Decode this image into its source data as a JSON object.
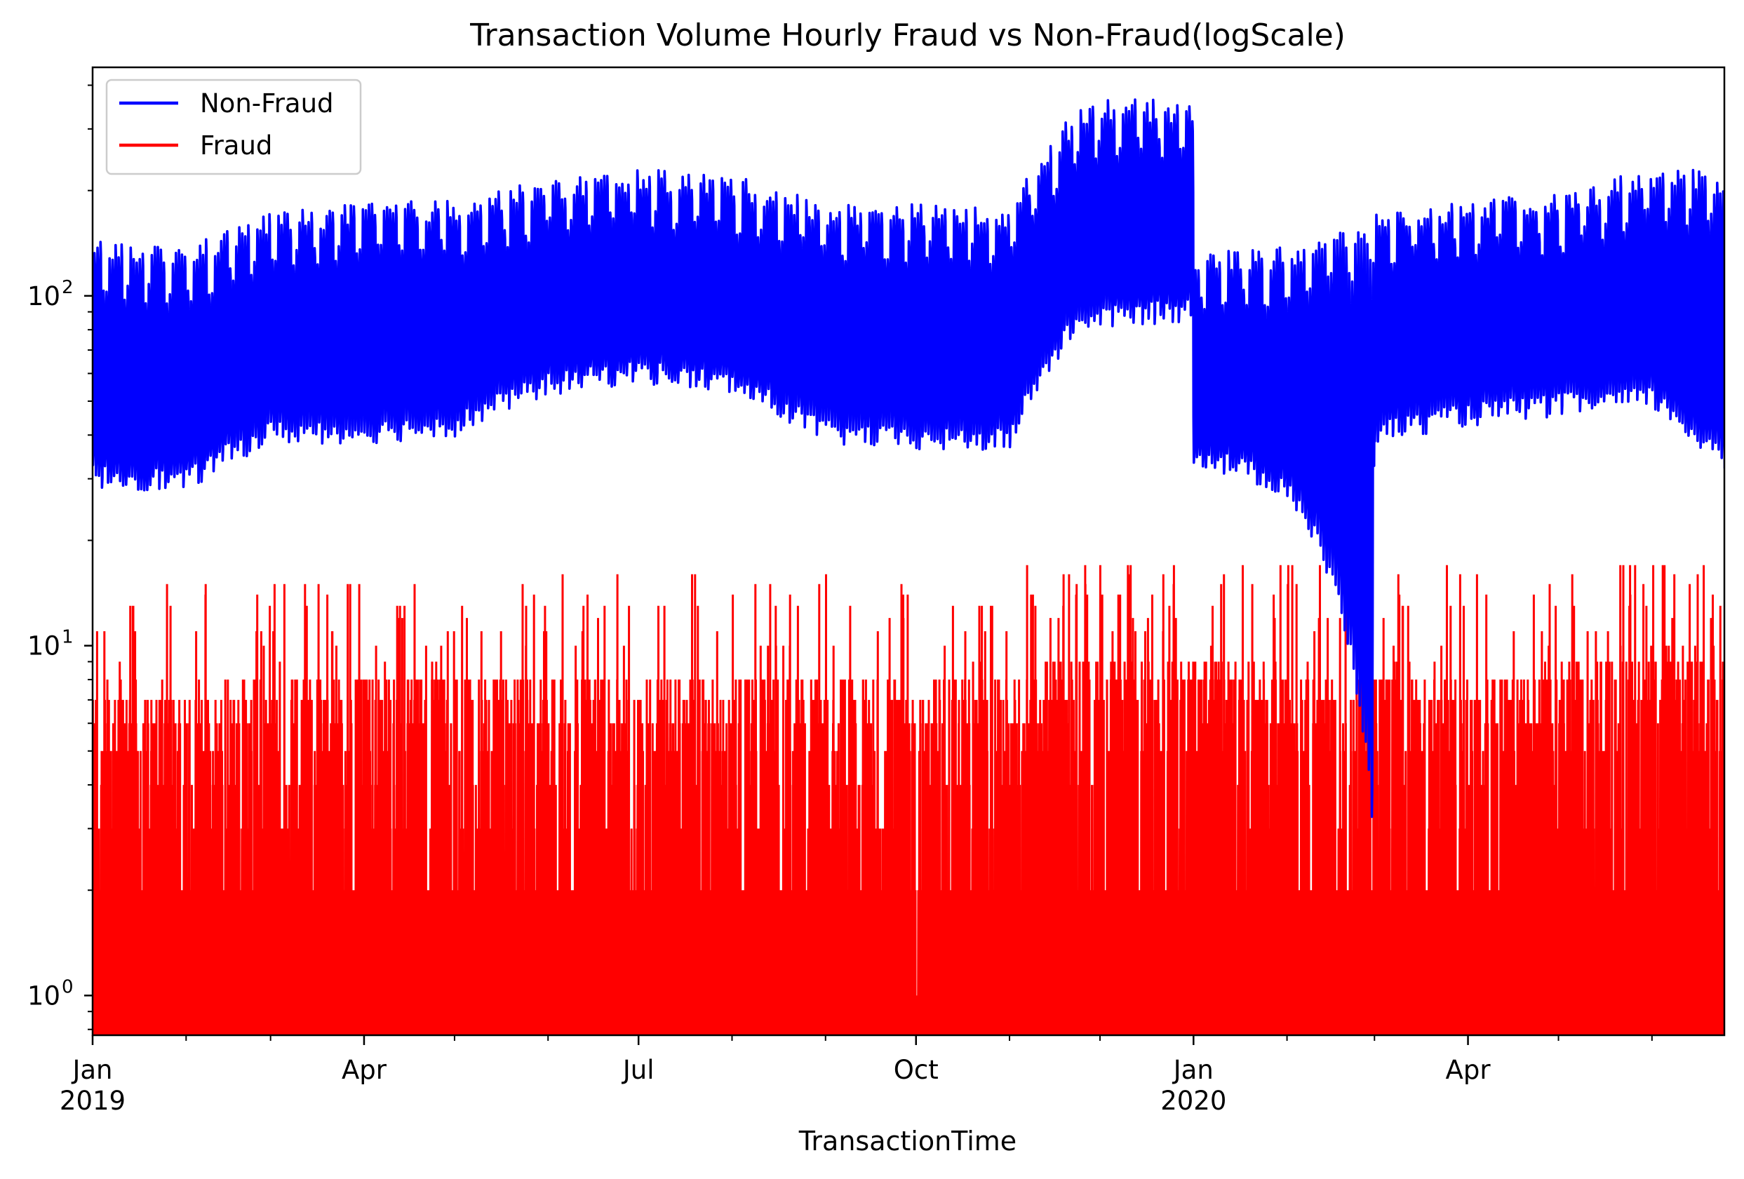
{
  "chart_data": {
    "type": "line",
    "title": "Transaction Volume Hourly Fraud vs Non-Fraud(logScale)",
    "xlabel": "TransactionTime",
    "ylabel": "",
    "yscale": "log",
    "xlim": [
      "2019-01-01",
      "2020-06-25"
    ],
    "ylim": [
      0.77,
      450
    ],
    "x_ticks": [
      {
        "date": "2019-01-01",
        "label": "Jan",
        "sublabel": "2019"
      },
      {
        "date": "2019-04-01",
        "label": "Apr",
        "sublabel": ""
      },
      {
        "date": "2019-07-01",
        "label": "Jul",
        "sublabel": ""
      },
      {
        "date": "2019-10-01",
        "label": "Oct",
        "sublabel": ""
      },
      {
        "date": "2020-01-01",
        "label": "Jan",
        "sublabel": "2020"
      },
      {
        "date": "2020-04-01",
        "label": "Apr",
        "sublabel": ""
      }
    ],
    "x_minor_ticks": [
      "2019-02-01",
      "2019-03-01",
      "2019-05-01",
      "2019-06-01",
      "2019-08-01",
      "2019-09-01",
      "2019-11-01",
      "2019-12-01",
      "2020-02-01",
      "2020-03-01",
      "2020-05-01",
      "2020-06-01"
    ],
    "y_ticks": [
      {
        "value": 1,
        "label": "10",
        "exp": "0"
      },
      {
        "value": 10,
        "label": "10",
        "exp": "1"
      },
      {
        "value": 100,
        "label": "10",
        "exp": "2"
      }
    ],
    "legend": {
      "position": "top-left"
    },
    "series": [
      {
        "name": "Non-Fraud",
        "color": "#0000ff",
        "x": [
          "2019-01-01",
          "2019-02-01",
          "2019-03-01",
          "2019-04-01",
          "2019-05-01",
          "2019-06-01",
          "2019-07-01",
          "2019-08-01",
          "2019-09-01",
          "2019-10-01",
          "2019-11-01",
          "2019-11-25",
          "2019-12-01",
          "2019-12-31",
          "2020-01-01",
          "2020-02-01",
          "2020-02-29",
          "2020-03-01",
          "2020-04-01",
          "2020-05-01",
          "2020-06-01",
          "2020-06-25"
        ],
        "daily_peak": [
          140,
          135,
          170,
          180,
          185,
          210,
          225,
          215,
          180,
          180,
          175,
          350,
          360,
          350,
          130,
          135,
          165,
          170,
          185,
          190,
          230,
          220
        ],
        "daily_trough": [
          30,
          29,
          40,
          40,
          42,
          55,
          60,
          55,
          40,
          38,
          38,
          85,
          85,
          90,
          35,
          28,
          3,
          40,
          45,
          48,
          50,
          32
        ]
      },
      {
        "name": "Fraud",
        "color": "#ff0000",
        "x": [
          "2019-01-01",
          "2019-04-01",
          "2019-07-01",
          "2019-10-01",
          "2020-01-01",
          "2020-04-01",
          "2020-06-25"
        ],
        "typical_peak": [
          7,
          8,
          8,
          8,
          9,
          8,
          10
        ],
        "max": 17
      }
    ]
  }
}
